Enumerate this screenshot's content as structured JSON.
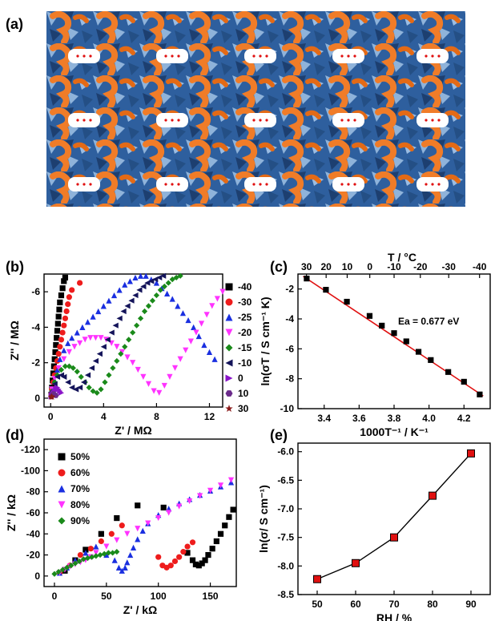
{
  "panels": {
    "a": "(a)",
    "b": "(b)",
    "c": "(c)",
    "d": "(d)",
    "e": "(e)"
  },
  "colors": {
    "orange": "#f07c28",
    "blue": "#2e5f9e",
    "lightblue": "#8fb3da",
    "pores": "#ffffff",
    "fit": "#e01010"
  },
  "chart_data": [
    {
      "id": "b",
      "type": "scatter",
      "xlabel": "Z' / MΩ",
      "ylabel": "Z'' / MΩ",
      "xlim": [
        -0.5,
        13
      ],
      "ylim": [
        0.5,
        -7
      ],
      "xticks": [
        0,
        4,
        8,
        12
      ],
      "yticks": [
        0,
        -2,
        -4,
        -6
      ],
      "series": [
        {
          "name": "-40",
          "color": "#000000",
          "marker": "square",
          "x": [
            0.05,
            0.1,
            0.15,
            0.2,
            0.25,
            0.3,
            0.35,
            0.4,
            0.45,
            0.5,
            0.55,
            0.6,
            0.65,
            0.7,
            0.8,
            0.9,
            1.0,
            1.1
          ],
          "y": [
            -0.2,
            -0.6,
            -1.0,
            -1.4,
            -1.8,
            -2.2,
            -2.6,
            -3.0,
            -3.4,
            -3.8,
            -4.2,
            -4.6,
            -5.0,
            -5.4,
            -5.8,
            -6.2,
            -6.6,
            -6.8
          ]
        },
        {
          "name": "-30",
          "color": "#ee1c1c",
          "marker": "circle",
          "x": [
            0.05,
            0.1,
            0.2,
            0.3,
            0.4,
            0.5,
            0.6,
            0.7,
            0.8,
            0.9,
            1.0,
            1.1,
            1.2,
            1.3,
            1.4,
            1.6,
            2.2
          ],
          "y": [
            -0.2,
            -0.5,
            -0.9,
            -1.3,
            -1.7,
            -2.1,
            -2.5,
            -2.9,
            -3.3,
            -3.7,
            -4.1,
            -4.5,
            -4.9,
            -5.3,
            -5.7,
            -6.1,
            -6.5
          ]
        },
        {
          "name": "-25",
          "color": "#1a2fe0",
          "marker": "triangle-up",
          "x": [
            0.1,
            0.3,
            0.5,
            0.7,
            1.0,
            1.3,
            1.6,
            2.0,
            2.4,
            2.8,
            3.2,
            3.6,
            4.0,
            4.4,
            4.8,
            5.2,
            5.6,
            6.0,
            6.4,
            6.8,
            7.2,
            7.6,
            8.0,
            8.4,
            8.8,
            9.2,
            9.6,
            10.0,
            10.4,
            10.8,
            11.2,
            11.6,
            12.0,
            12.4
          ],
          "y": [
            -0.4,
            -1.0,
            -1.6,
            -2.2,
            -2.7,
            -3.1,
            -3.4,
            -3.7,
            -4.0,
            -4.3,
            -4.6,
            -4.9,
            -5.2,
            -5.5,
            -5.8,
            -6.1,
            -6.4,
            -6.6,
            -6.8,
            -6.9,
            -6.9,
            -6.7,
            -6.5,
            -6.2,
            -5.9,
            -5.6,
            -5.2,
            -4.8,
            -4.4,
            -4.0,
            -3.5,
            -3.0,
            -2.6,
            -2.2
          ]
        },
        {
          "name": "-20",
          "color": "#ff33ff",
          "marker": "triangle-down",
          "x": [
            0.1,
            0.3,
            0.6,
            1.0,
            1.4,
            1.8,
            2.2,
            2.6,
            3.0,
            3.4,
            3.8,
            4.2,
            4.6,
            5.0,
            5.4,
            5.8,
            6.2,
            6.6,
            7.0,
            7.4,
            7.8,
            8.2,
            8.6,
            9.0,
            9.4,
            9.8,
            10.2,
            10.6,
            11.0,
            11.4,
            11.8,
            12.2,
            12.6,
            13.0
          ],
          "y": [
            -0.5,
            -1.1,
            -1.7,
            -2.2,
            -2.6,
            -2.9,
            -3.1,
            -3.3,
            -3.4,
            -3.4,
            -3.4,
            -3.3,
            -3.1,
            -2.9,
            -2.6,
            -2.3,
            -2.0,
            -1.6,
            -1.2,
            -0.8,
            -0.4,
            -0.3,
            -0.7,
            -1.2,
            -1.7,
            -2.2,
            -2.7,
            -3.2,
            -3.7,
            -4.2,
            -4.7,
            -5.2,
            -5.6,
            -6.0
          ]
        },
        {
          "name": "-15",
          "color": "#1a8a1a",
          "marker": "diamond",
          "x": [
            0.1,
            0.3,
            0.5,
            0.8,
            1.1,
            1.4,
            1.7,
            2.0,
            2.3,
            2.6,
            2.9,
            3.2,
            3.5,
            3.8,
            4.1,
            4.4,
            4.7,
            5.0,
            5.3,
            5.6,
            5.9,
            6.2,
            6.5,
            6.8,
            7.1,
            7.4,
            7.7,
            8.0,
            8.3,
            8.6,
            8.9,
            9.2,
            9.5,
            9.8
          ],
          "y": [
            -0.4,
            -0.9,
            -1.3,
            -1.6,
            -1.8,
            -1.8,
            -1.7,
            -1.5,
            -1.2,
            -0.9,
            -0.6,
            -0.4,
            -0.3,
            -0.5,
            -0.9,
            -1.3,
            -1.7,
            -2.1,
            -2.5,
            -2.9,
            -3.3,
            -3.7,
            -4.1,
            -4.5,
            -4.9,
            -5.2,
            -5.5,
            -5.8,
            -6.1,
            -6.3,
            -6.5,
            -6.7,
            -6.8,
            -6.9
          ]
        },
        {
          "name": "-10",
          "color": "#14145a",
          "marker": "triangle-left",
          "x": [
            0.1,
            0.3,
            0.5,
            0.8,
            1.0,
            1.3,
            1.6,
            1.9,
            2.2,
            2.5,
            2.8,
            3.1,
            3.4,
            3.7,
            4.0,
            4.3,
            4.6,
            4.9,
            5.2,
            5.5,
            5.8,
            6.1,
            6.4,
            6.7,
            7.0,
            7.3,
            7.6,
            7.9,
            8.2,
            8.5
          ],
          "y": [
            -0.4,
            -0.8,
            -1.2,
            -1.3,
            -1.2,
            -0.9,
            -0.6,
            -0.5,
            -0.6,
            -0.9,
            -1.3,
            -1.7,
            -2.1,
            -2.5,
            -2.9,
            -3.3,
            -3.7,
            -4.1,
            -4.5,
            -4.9,
            -5.2,
            -5.5,
            -5.8,
            -6.1,
            -6.3,
            -6.5,
            -6.6,
            -6.7,
            -6.8,
            -6.9
          ]
        },
        {
          "name": "0",
          "color": "#8a14c8",
          "marker": "triangle-right",
          "x": [
            0.05,
            0.1,
            0.2,
            0.3,
            0.4,
            0.5,
            0.6,
            0.7,
            0.8
          ],
          "y": [
            -0.1,
            -0.2,
            -0.3,
            -0.4,
            -0.5,
            -0.6,
            -0.5,
            -0.4,
            -0.3
          ]
        },
        {
          "name": "10",
          "color": "#6a2a8a",
          "marker": "hexagon",
          "x": [
            0.05,
            0.1,
            0.15,
            0.2,
            0.3,
            0.4
          ],
          "y": [
            -0.1,
            -0.15,
            -0.2,
            -0.25,
            -0.2,
            -0.15
          ]
        },
        {
          "name": "30",
          "color": "#8a1a1a",
          "marker": "star",
          "x": [
            0.02,
            0.05,
            0.08,
            0.1,
            0.12
          ],
          "y": [
            -0.05,
            -0.08,
            -0.1,
            -0.08,
            -0.05
          ]
        }
      ]
    },
    {
      "id": "c",
      "type": "scatter",
      "xlabel": "1000T⁻¹ / K⁻¹",
      "ylabel": "ln(σT / S cm⁻¹ K)",
      "top_label": "T / °C",
      "xlim": [
        3.25,
        4.35
      ],
      "ylim": [
        -10,
        -1
      ],
      "xticks": [
        3.4,
        3.6,
        3.8,
        4.0,
        4.2
      ],
      "xtick_labels": [
        "3.4",
        "3.6",
        "3.8",
        "4.0",
        "4.2"
      ],
      "yticks": [
        -2,
        -4,
        -6,
        -8,
        -10
      ],
      "top_ticks": [
        30,
        20,
        10,
        0,
        -10,
        -20,
        -30,
        -40
      ],
      "annotation": "Ea = 0.677 eV",
      "x": [
        3.3,
        3.41,
        3.53,
        3.66,
        3.73,
        3.8,
        3.87,
        3.94,
        4.01,
        4.11,
        4.2,
        4.29
      ],
      "y": [
        -1.3,
        -2.05,
        -2.85,
        -3.8,
        -4.45,
        -4.95,
        -5.5,
        -6.2,
        -6.75,
        -7.55,
        -8.2,
        -9.05
      ],
      "fit": {
        "x": [
          3.28,
          4.31
        ],
        "y": [
          -1.15,
          -9.15
        ]
      }
    },
    {
      "id": "d",
      "type": "scatter",
      "xlabel": "Z' / kΩ",
      "ylabel": "Z'' / kΩ",
      "xlim": [
        -10,
        175
      ],
      "ylim": [
        10,
        -130
      ],
      "xticks": [
        0,
        50,
        100,
        150
      ],
      "yticks": [
        0,
        -20,
        -40,
        -60,
        -80,
        -100,
        -120
      ],
      "series": [
        {
          "name": "50%",
          "color": "#000000",
          "marker": "square",
          "x": [
            10,
            20,
            30,
            45,
            60,
            80,
            105,
            128,
            133,
            136,
            139,
            142,
            145,
            148,
            152,
            156,
            160,
            164,
            168,
            172
          ],
          "y": [
            -5,
            -15,
            -25,
            -40,
            -55,
            -67,
            -65,
            -22,
            -15,
            -11,
            -10,
            -12,
            -15,
            -20,
            -26,
            -33,
            -40,
            -48,
            -56,
            -63
          ]
        },
        {
          "name": "60%",
          "color": "#ee1c1c",
          "marker": "circle",
          "x": [
            5,
            15,
            25,
            35,
            45,
            55,
            65,
            100,
            104,
            108,
            112,
            116,
            120,
            124,
            128,
            133
          ],
          "y": [
            -3,
            -10,
            -20,
            -26,
            -33,
            -40,
            -48,
            -18,
            -10,
            -8,
            -10,
            -14,
            -18,
            -23,
            -28,
            -32
          ]
        },
        {
          "name": "70%",
          "color": "#1a2fe0",
          "marker": "triangle-up",
          "x": [
            5,
            12,
            20,
            30,
            40,
            50,
            58,
            62,
            65,
            68,
            70,
            73,
            76,
            80,
            85,
            90,
            100,
            110,
            120,
            130,
            140,
            150,
            160,
            170
          ],
          "y": [
            -3,
            -8,
            -15,
            -22,
            -28,
            -20,
            -15,
            -8,
            -5,
            -8,
            -13,
            -20,
            -27,
            -35,
            -43,
            -50,
            -58,
            -64,
            -69,
            -73,
            -77,
            -81,
            -85,
            -89
          ]
        },
        {
          "name": "80%",
          "color": "#ff33ff",
          "marker": "triangle-down",
          "x": [
            5,
            10,
            15,
            20,
            25,
            30,
            35,
            40,
            50,
            60,
            70,
            80,
            90,
            100,
            110,
            120,
            130,
            140,
            150,
            160,
            170
          ],
          "y": [
            -3,
            -6,
            -9,
            -11,
            -13,
            -15,
            -18,
            -22,
            -28,
            -34,
            -40,
            -45,
            -50,
            -55,
            -60,
            -66,
            -71,
            -76,
            -81,
            -86,
            -91
          ]
        },
        {
          "name": "90%",
          "color": "#1a8a1a",
          "marker": "diamond",
          "x": [
            0,
            4,
            8,
            12,
            16,
            20,
            24,
            28,
            32,
            36,
            40,
            44,
            48,
            52,
            56,
            60
          ],
          "y": [
            -2,
            -4,
            -6,
            -8,
            -10,
            -12,
            -14,
            -16,
            -17,
            -18,
            -19,
            -20,
            -21,
            -22,
            -22,
            -23
          ]
        }
      ]
    },
    {
      "id": "e",
      "type": "line",
      "xlabel": "RH / %",
      "ylabel": "ln(σ/ S cm⁻¹)",
      "xlim": [
        45,
        95
      ],
      "ylim": [
        -8.5,
        -5.85
      ],
      "xticks": [
        50,
        60,
        70,
        80,
        90
      ],
      "yticks": [
        -6.0,
        -6.5,
        -7.0,
        -7.5,
        -8.0,
        -8.5
      ],
      "ytick_labels": [
        "-6.0",
        "-6.5",
        "-7.0",
        "-7.5",
        "-8.0",
        "-8.5"
      ],
      "x": [
        50,
        60,
        70,
        80,
        90
      ],
      "y": [
        -8.23,
        -7.95,
        -7.5,
        -6.77,
        -6.03
      ]
    }
  ]
}
